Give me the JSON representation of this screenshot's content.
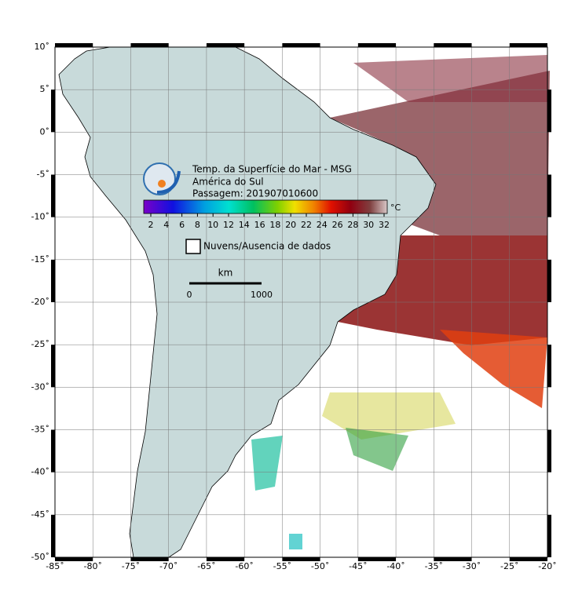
{
  "map": {
    "title": "Temp. da Superfície do Mar - MSG",
    "region": "América do Sul",
    "pass": "Passagem: 201907010600",
    "colorbar": {
      "unit": "°C",
      "ticks": [
        2,
        4,
        6,
        8,
        10,
        12,
        14,
        16,
        18,
        20,
        22,
        24,
        26,
        28,
        30,
        32
      ]
    },
    "legend": "Nuvens/Ausencia de dados",
    "scale": {
      "unit": "km",
      "start": 0,
      "end": 1000
    },
    "lon_ticks": [
      {
        "value": -85,
        "label": "-85˚"
      },
      {
        "value": -80,
        "label": "-80˚"
      },
      {
        "value": -75,
        "label": "-75˚"
      },
      {
        "value": -70,
        "label": "-70˚"
      },
      {
        "value": -65,
        "label": "-65˚"
      },
      {
        "value": -60,
        "label": "-60˚"
      },
      {
        "value": -55,
        "label": "-55˚"
      },
      {
        "value": -50,
        "label": "-50˚"
      },
      {
        "value": -45,
        "label": "-45˚"
      },
      {
        "value": -40,
        "label": "-40˚"
      },
      {
        "value": -35,
        "label": "-35˚"
      },
      {
        "value": -30,
        "label": "-30˚"
      },
      {
        "value": -25,
        "label": "-25˚"
      },
      {
        "value": -20,
        "label": "-20˚"
      }
    ],
    "lat_ticks": [
      {
        "value": 10,
        "label": "10˚"
      },
      {
        "value": 5,
        "label": "5˚"
      },
      {
        "value": 0,
        "label": "0˚"
      },
      {
        "value": -5,
        "label": "-5˚"
      },
      {
        "value": -10,
        "label": "-10˚"
      },
      {
        "value": -15,
        "label": "-15˚"
      },
      {
        "value": -20,
        "label": "-20˚"
      },
      {
        "value": -25,
        "label": "-25˚"
      },
      {
        "value": -30,
        "label": "-30˚"
      },
      {
        "value": -35,
        "label": "-35˚"
      },
      {
        "value": -40,
        "label": "-40˚"
      },
      {
        "value": -45,
        "label": "-45˚"
      },
      {
        "value": -50,
        "label": "-50˚"
      }
    ]
  }
}
